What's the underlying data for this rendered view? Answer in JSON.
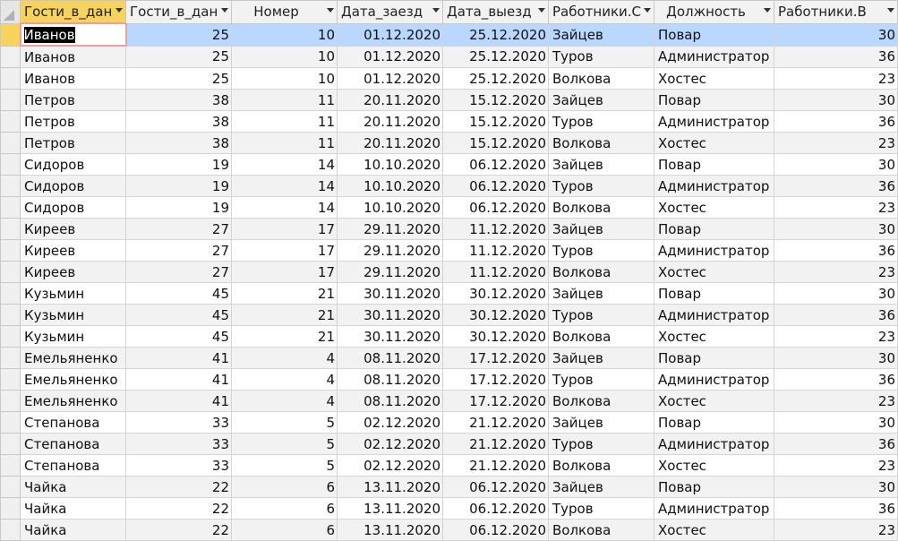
{
  "columns": [
    {
      "label": "Гости_в_дан",
      "align": "left"
    },
    {
      "label": "Гости_в_дан",
      "align": "left"
    },
    {
      "label": "Номер",
      "align": "center"
    },
    {
      "label": "Дата_заезд",
      "align": "left"
    },
    {
      "label": "Дата_выезд",
      "align": "left"
    },
    {
      "label": "Работники.С",
      "align": "left"
    },
    {
      "label": "Должность",
      "align": "center"
    },
    {
      "label": "Работники.В",
      "align": "left"
    }
  ],
  "rows": [
    [
      "Иванов",
      "25",
      "10",
      "01.12.2020",
      "25.12.2020",
      "Зайцев",
      "Повар",
      "30"
    ],
    [
      "Иванов",
      "25",
      "10",
      "01.12.2020",
      "25.12.2020",
      "Туров",
      "Администратор",
      "36"
    ],
    [
      "Иванов",
      "25",
      "10",
      "01.12.2020",
      "25.12.2020",
      "Волкова",
      "Хостес",
      "23"
    ],
    [
      "Петров",
      "38",
      "11",
      "20.11.2020",
      "15.12.2020",
      "Зайцев",
      "Повар",
      "30"
    ],
    [
      "Петров",
      "38",
      "11",
      "20.11.2020",
      "15.12.2020",
      "Туров",
      "Администратор",
      "36"
    ],
    [
      "Петров",
      "38",
      "11",
      "20.11.2020",
      "15.12.2020",
      "Волкова",
      "Хостес",
      "23"
    ],
    [
      "Сидоров",
      "19",
      "14",
      "10.10.2020",
      "06.12.2020",
      "Зайцев",
      "Повар",
      "30"
    ],
    [
      "Сидоров",
      "19",
      "14",
      "10.10.2020",
      "06.12.2020",
      "Туров",
      "Администратор",
      "36"
    ],
    [
      "Сидоров",
      "19",
      "14",
      "10.10.2020",
      "06.12.2020",
      "Волкова",
      "Хостес",
      "23"
    ],
    [
      "Киреев",
      "27",
      "17",
      "29.11.2020",
      "11.12.2020",
      "Зайцев",
      "Повар",
      "30"
    ],
    [
      "Киреев",
      "27",
      "17",
      "29.11.2020",
      "11.12.2020",
      "Туров",
      "Администратор",
      "36"
    ],
    [
      "Киреев",
      "27",
      "17",
      "29.11.2020",
      "11.12.2020",
      "Волкова",
      "Хостес",
      "23"
    ],
    [
      "Кузьмин",
      "45",
      "21",
      "30.11.2020",
      "30.12.2020",
      "Зайцев",
      "Повар",
      "30"
    ],
    [
      "Кузьмин",
      "45",
      "21",
      "30.11.2020",
      "30.12.2020",
      "Туров",
      "Администратор",
      "36"
    ],
    [
      "Кузьмин",
      "45",
      "21",
      "30.11.2020",
      "30.12.2020",
      "Волкова",
      "Хостес",
      "23"
    ],
    [
      "Емельяненко",
      "41",
      "4",
      "08.11.2020",
      "17.12.2020",
      "Зайцев",
      "Повар",
      "30"
    ],
    [
      "Емельяненко",
      "41",
      "4",
      "08.11.2020",
      "17.12.2020",
      "Туров",
      "Администратор",
      "36"
    ],
    [
      "Емельяненко",
      "41",
      "4",
      "08.11.2020",
      "17.12.2020",
      "Волкова",
      "Хостес",
      "23"
    ],
    [
      "Степанова",
      "33",
      "5",
      "02.12.2020",
      "21.12.2020",
      "Зайцев",
      "Повар",
      "30"
    ],
    [
      "Степанова",
      "33",
      "5",
      "02.12.2020",
      "21.12.2020",
      "Туров",
      "Администратор",
      "36"
    ],
    [
      "Степанова",
      "33",
      "5",
      "02.12.2020",
      "21.12.2020",
      "Волкова",
      "Хостес",
      "23"
    ],
    [
      "Чайка",
      "22",
      "6",
      "13.11.2020",
      "06.12.2020",
      "Зайцев",
      "Повар",
      "30"
    ],
    [
      "Чайка",
      "22",
      "6",
      "13.11.2020",
      "06.12.2020",
      "Туров",
      "Администратор",
      "36"
    ],
    [
      "Чайка",
      "22",
      "6",
      "13.11.2020",
      "06.12.2020",
      "Волкова",
      "Хостес",
      "23"
    ]
  ],
  "column_types": [
    "text",
    "num",
    "num",
    "num",
    "num",
    "text",
    "text",
    "num"
  ],
  "selected_row": 0,
  "colors": {
    "header": "#f2f2f2",
    "selected_header": "#f6d25e",
    "row_highlight": "#b9d7ff"
  }
}
